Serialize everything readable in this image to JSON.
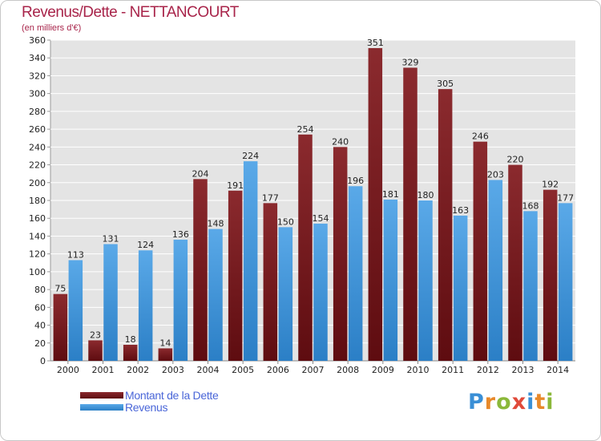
{
  "header": {
    "title": "Revenus/Dette - NETTANCOURT",
    "subtitle": "(en milliers d'€)"
  },
  "legend": {
    "debt_label": "Montant de la Dette",
    "revenue_label": "Revenus"
  },
  "logo": {
    "text": "Proxiti"
  },
  "colors": {
    "debt": "#8b2a2e",
    "debt_dark": "#5e0c10",
    "revenue": "#5aa9e8",
    "revenue_dark": "#2b7fc6",
    "title": "#a8244a",
    "legend_text": "#4a66d8",
    "plot_bg": "#e4e4e4"
  },
  "chart_data": {
    "type": "bar",
    "title": "Revenus/Dette - NETTANCOURT",
    "ylabel": "(en milliers d'€)",
    "xlabel": "",
    "categories": [
      "2000",
      "2001",
      "2002",
      "2003",
      "2004",
      "2005",
      "2006",
      "2007",
      "2008",
      "2009",
      "2010",
      "2011",
      "2012",
      "2013",
      "2014"
    ],
    "series": [
      {
        "name": "Montant de la Dette",
        "values": [
          75,
          23,
          18,
          14,
          204,
          191,
          177,
          254,
          240,
          351,
          329,
          305,
          246,
          220,
          192
        ]
      },
      {
        "name": "Revenus",
        "values": [
          113,
          131,
          124,
          136,
          148,
          224,
          150,
          154,
          196,
          181,
          180,
          163,
          203,
          168,
          177
        ]
      }
    ],
    "ylim": [
      0,
      360
    ],
    "ytick_step": 20,
    "grid": true,
    "legend_position": "bottom-left"
  }
}
